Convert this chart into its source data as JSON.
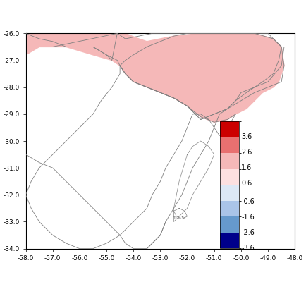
{
  "lon_min": -58.0,
  "lon_max": -48.0,
  "lat_min": -34.0,
  "lat_max": -26.0,
  "xticks": [
    -58.0,
    -57.0,
    -56.0,
    -55.0,
    -54.0,
    -53.0,
    -52.0,
    -51.0,
    -50.0,
    -49.0,
    -48.0
  ],
  "yticks": [
    -34.0,
    -33.0,
    -32.0,
    -31.0,
    -30.0,
    -29.0,
    -28.0,
    -27.0,
    -26.0
  ],
  "colorbar_levels": [
    -3.6,
    -2.6,
    -1.6,
    -0.6,
    0.6,
    1.6,
    2.6,
    3.6
  ],
  "colorbar_labels": [
    "3.6",
    "2.6",
    "1.6",
    "0.6",
    "-0.6",
    "-1.6",
    "-2.6",
    "-3.6"
  ],
  "colorbar_colors": [
    "#cc0000",
    "#e87070",
    "#f5b8b8",
    "#fde0e0",
    "#dde8f5",
    "#aac4e8",
    "#6699cc",
    "#00008b"
  ],
  "background_color": "#ffffff",
  "shaded_region_color": "#f5b8b8",
  "border_color": "#808080",
  "figsize": [
    4.34,
    4.0
  ],
  "dpi": 100
}
